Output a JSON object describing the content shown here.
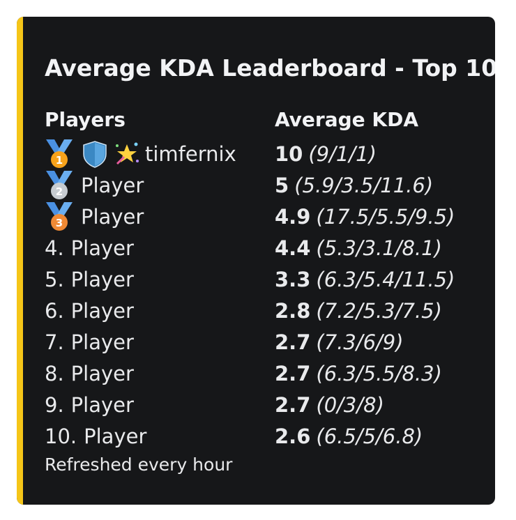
{
  "embed": {
    "accent_color": "#f5c518",
    "title": "Average KDA Leaderboard - Top 10",
    "columns": {
      "players": "Players",
      "kda": "Average KDA"
    },
    "footer": "Refreshed every hour",
    "rows": [
      {
        "rank": "",
        "medal": "gold-medal",
        "player": "timfernix",
        "avg": "10",
        "detail": "(9/1/1)"
      },
      {
        "rank": "",
        "medal": "silver-medal",
        "player": "Player",
        "avg": "5",
        "detail": "(5.9/3.5/11.6)"
      },
      {
        "rank": "",
        "medal": "bronze-medal",
        "player": "Player",
        "avg": "4.9",
        "detail": "(17.5/5.5/9.5)"
      },
      {
        "rank": "4.",
        "player": "Player",
        "avg": "4.4",
        "detail": "(5.3/3.1/8.1)"
      },
      {
        "rank": "5.",
        "player": "Player",
        "avg": "3.3",
        "detail": "(6.3/5.4/11.5)"
      },
      {
        "rank": "6.",
        "player": "Player",
        "avg": "2.8",
        "detail": "(7.2/5.3/7.5)"
      },
      {
        "rank": "7.",
        "player": "Player",
        "avg": "2.7",
        "detail": "(7.3/6/9)"
      },
      {
        "rank": "8.",
        "player": "Player",
        "avg": "2.7",
        "detail": "(6.3/5.5/8.3)"
      },
      {
        "rank": "9.",
        "player": "Player",
        "avg": "2.7",
        "detail": "(0/3/8)"
      },
      {
        "rank": "10.",
        "player": "Player",
        "avg": "2.6",
        "detail": "(6.5/5/6.8)"
      }
    ]
  },
  "medals": {
    "gold-medal": {
      "label": "1",
      "color": "#f7a21b"
    },
    "silver-medal": {
      "label": "2",
      "color": "#c7ccd1"
    },
    "bronze-medal": {
      "label": "3",
      "color": "#f08a35"
    }
  }
}
